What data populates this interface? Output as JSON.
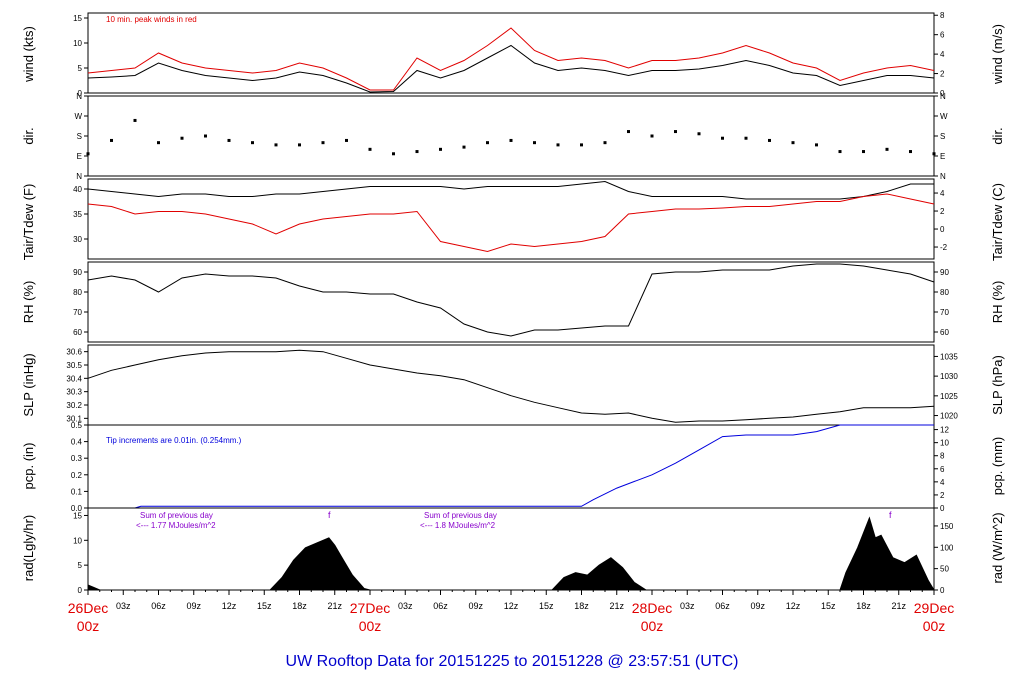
{
  "footer": "UW Rooftop Data for 20151225  to  20151228 @ 23:57:51  (UTC)",
  "colors": {
    "main": "#000000",
    "red": "#e00000",
    "blue": "#0000dd",
    "purple": "#8800cc"
  },
  "chart_data": [
    {
      "type": "line",
      "id": "wind",
      "left_label": "wind (kts)",
      "right_label": "wind (m/s)",
      "left_ticks": [
        "0",
        "5",
        "10",
        "15"
      ],
      "left_range": [
        0,
        16
      ],
      "right_ticks": [
        "0",
        "2",
        "4",
        "6",
        "8"
      ],
      "right_range": [
        0,
        8.23
      ],
      "annotation": "10 min. peak winds in red",
      "x_hours": [
        0,
        2,
        4,
        6,
        8,
        10,
        12,
        14,
        16,
        18,
        20,
        22,
        24,
        26,
        28,
        30,
        32,
        34,
        36,
        38,
        40,
        42,
        44,
        46,
        48,
        50,
        52,
        54,
        56,
        58,
        60,
        62,
        64,
        66,
        68,
        70,
        72
      ],
      "series": [
        {
          "values": [
            3,
            3.2,
            3.5,
            6,
            4.5,
            3.5,
            3,
            2.5,
            3,
            4.2,
            3.5,
            2,
            0.2,
            0.3,
            4.5,
            3,
            4.5,
            7,
            9.5,
            6,
            4.5,
            5,
            4.5,
            3.5,
            4.5,
            4.5,
            4.8,
            5.5,
            6.5,
            5.5,
            4,
            3.5,
            1.5,
            2.5,
            3.5,
            3.5,
            3
          ]
        },
        {
          "values": [
            4,
            4.5,
            5,
            8,
            6,
            5,
            4.5,
            4,
            4.5,
            6,
            5,
            3,
            0.6,
            0.6,
            7,
            4.5,
            6.5,
            9.5,
            13,
            8.5,
            6.5,
            7,
            6.5,
            5,
            6.5,
            6.5,
            7,
            8,
            9.5,
            8,
            6,
            5,
            2.5,
            4,
            5,
            5.5,
            4.5
          ]
        }
      ]
    },
    {
      "type": "scatter",
      "id": "dir",
      "left_label": "dir.",
      "right_label": "dir.",
      "left_ticks": [
        "N",
        "E",
        "S",
        "W",
        "N"
      ],
      "left_range": [
        0,
        360
      ],
      "right_ticks": [
        "N",
        "E",
        "S",
        "W",
        "N"
      ],
      "right_range": [
        0,
        360
      ],
      "x_hours": [
        0,
        2,
        4,
        6,
        8,
        10,
        12,
        14,
        16,
        18,
        20,
        22,
        24,
        26,
        28,
        30,
        32,
        34,
        36,
        38,
        40,
        42,
        44,
        46,
        48,
        50,
        52,
        54,
        56,
        58,
        60,
        62,
        64,
        66,
        68,
        70,
        72
      ],
      "series": [
        {
          "values": [
            100,
            160,
            250,
            150,
            170,
            180,
            160,
            150,
            140,
            140,
            150,
            160,
            120,
            100,
            110,
            120,
            130,
            150,
            160,
            150,
            140,
            140,
            150,
            200,
            180,
            200,
            190,
            170,
            170,
            160,
            150,
            140,
            110,
            110,
            120,
            110,
            100
          ]
        }
      ]
    },
    {
      "type": "line",
      "id": "temp",
      "left_label": "Tair/Tdew (F)",
      "right_label": "Tair/Tdew (C)",
      "left_ticks": [
        "30",
        "35",
        "40"
      ],
      "left_range": [
        26,
        42
      ],
      "right_ticks": [
        "-2",
        "0",
        "2",
        "4"
      ],
      "right_range": [
        -3.33,
        5.56
      ],
      "x_hours": [
        0,
        2,
        4,
        6,
        8,
        10,
        12,
        14,
        16,
        18,
        20,
        22,
        24,
        26,
        28,
        30,
        32,
        34,
        36,
        38,
        40,
        42,
        44,
        46,
        48,
        50,
        52,
        54,
        56,
        58,
        60,
        62,
        64,
        66,
        68,
        70,
        72
      ],
      "series": [
        {
          "name": "Tair",
          "values": [
            40,
            39.5,
            39,
            38.5,
            39,
            39,
            38.5,
            38.5,
            39,
            39,
            39.5,
            40,
            40.5,
            40.5,
            40.5,
            40.5,
            40,
            40.5,
            40.5,
            40.5,
            40.5,
            41,
            41.5,
            39.5,
            38.5,
            38.5,
            38.5,
            38.5,
            38,
            38,
            38,
            38,
            38,
            38.5,
            39.5,
            41,
            41
          ]
        },
        {
          "name": "Tdew",
          "values": [
            37,
            36.5,
            35,
            35.5,
            35.5,
            35,
            34,
            33,
            31,
            33,
            34,
            34.5,
            35,
            35,
            35.5,
            29.5,
            28.5,
            27.5,
            29,
            28.5,
            29,
            29.5,
            30.5,
            35,
            35.5,
            36,
            36,
            36.2,
            36.5,
            36.5,
            37,
            37.5,
            37.5,
            38.5,
            39,
            38,
            37
          ]
        }
      ]
    },
    {
      "type": "line",
      "id": "rh",
      "left_label": "RH (%)",
      "right_label": "RH (%)",
      "left_ticks": [
        "60",
        "70",
        "80",
        "90"
      ],
      "left_range": [
        55,
        95
      ],
      "right_ticks": [
        "60",
        "70",
        "80",
        "90"
      ],
      "right_range": [
        55,
        95
      ],
      "x_hours": [
        0,
        2,
        4,
        6,
        8,
        10,
        12,
        14,
        16,
        18,
        20,
        22,
        24,
        26,
        28,
        30,
        32,
        34,
        36,
        38,
        40,
        42,
        44,
        46,
        48,
        50,
        52,
        54,
        56,
        58,
        60,
        62,
        64,
        66,
        68,
        70,
        72
      ],
      "series": [
        {
          "values": [
            86,
            88,
            86,
            80,
            87,
            89,
            88,
            88,
            87,
            83,
            80,
            80,
            79,
            79,
            75,
            72,
            64,
            60,
            58,
            61,
            61,
            62,
            63,
            63,
            89,
            90,
            90,
            91,
            91,
            91,
            93,
            94,
            94,
            93,
            91,
            89,
            85
          ]
        }
      ]
    },
    {
      "type": "line",
      "id": "slp",
      "left_label": "SLP (inHg)",
      "right_label": "SLP (hPa)",
      "left_ticks": [
        "30.1",
        "30.2",
        "30.3",
        "30.4",
        "30.5",
        "30.6"
      ],
      "left_range": [
        30.05,
        30.65
      ],
      "right_ticks": [
        "1020",
        "1025",
        "1030",
        "1035"
      ],
      "right_range": [
        1017.6,
        1037.9
      ],
      "x_hours": [
        0,
        2,
        4,
        6,
        8,
        10,
        12,
        14,
        16,
        18,
        20,
        22,
        24,
        26,
        28,
        30,
        32,
        34,
        36,
        38,
        40,
        42,
        44,
        46,
        48,
        50,
        52,
        54,
        56,
        58,
        60,
        62,
        64,
        66,
        68,
        70,
        72
      ],
      "series": [
        {
          "values": [
            30.4,
            30.46,
            30.5,
            30.54,
            30.57,
            30.59,
            30.6,
            30.6,
            30.6,
            30.61,
            30.6,
            30.55,
            30.5,
            30.47,
            30.44,
            30.42,
            30.39,
            30.33,
            30.27,
            30.22,
            30.18,
            30.14,
            30.13,
            30.14,
            30.1,
            30.07,
            30.08,
            30.08,
            30.09,
            30.1,
            30.11,
            30.13,
            30.15,
            30.18,
            30.18,
            30.18,
            30.19
          ]
        }
      ]
    },
    {
      "type": "line",
      "id": "pcp",
      "left_label": "pcp. (in)",
      "right_label": "pcp. (mm)",
      "left_ticks": [
        "0.0",
        "0.1",
        "0.2",
        "0.3",
        "0.4",
        "0.5"
      ],
      "left_range": [
        0,
        0.5
      ],
      "right_ticks": [
        "0",
        "2",
        "4",
        "6",
        "8",
        "10",
        "12"
      ],
      "right_range": [
        0,
        12.7
      ],
      "annotation": "Tip increments are 0.01in. (0.254mm.)",
      "x_hours": [
        0,
        4,
        4.5,
        10,
        20,
        30,
        40,
        42,
        43,
        45,
        48,
        50,
        52,
        54,
        56,
        60,
        62,
        64,
        68,
        72
      ],
      "series": [
        {
          "values": [
            0,
            0,
            0.01,
            0.01,
            0.01,
            0.01,
            0.01,
            0.01,
            0.05,
            0.12,
            0.2,
            0.27,
            0.35,
            0.43,
            0.44,
            0.44,
            0.46,
            0.5,
            0.5,
            0.5
          ]
        }
      ]
    },
    {
      "type": "area",
      "id": "rad",
      "left_label": "rad(Lgly/hr)",
      "right_label": "rad (W/m^2)",
      "left_ticks": [
        "0",
        "5",
        "10",
        "15"
      ],
      "left_range": [
        0,
        16.5
      ],
      "right_ticks": [
        "0",
        "50",
        "100",
        "150"
      ],
      "right_range": [
        0,
        192
      ],
      "notes": [
        {
          "line1": "Sum of previous day",
          "line2": "<--- 1.77 MJoules/m^2"
        },
        {
          "line1": "Sum of previous day",
          "line2": "<--- 1.8 MJoules/m^2"
        }
      ],
      "markers": [
        "f",
        "f"
      ],
      "x_hours": [
        0,
        0.5,
        1,
        15.5,
        16.5,
        17.5,
        18.5,
        19.5,
        20.5,
        21,
        21.5,
        22.5,
        23.5,
        24,
        39.5,
        40.5,
        41.5,
        42.5,
        43.5,
        44.5,
        45.5,
        46.5,
        47.5,
        64,
        64.5,
        65.5,
        66.5,
        67,
        67.5,
        68.5,
        69.5,
        70.5,
        71.5,
        72
      ],
      "series": [
        {
          "values": [
            1,
            0.5,
            0,
            0,
            2.5,
            6,
            8.5,
            9.5,
            10.5,
            9,
            7,
            3,
            0.3,
            0,
            0,
            2.5,
            3.5,
            3,
            5,
            6.5,
            4.5,
            1.5,
            0,
            0,
            3.5,
            8.5,
            14.5,
            10.5,
            11,
            6.5,
            5.5,
            7,
            2,
            0
          ]
        }
      ]
    }
  ],
  "x_axis": {
    "tick_labels": [
      "03z",
      "06z",
      "09z",
      "12z",
      "15z",
      "18z",
      "21z",
      "03z",
      "06z",
      "09z",
      "12z",
      "15z",
      "18z",
      "21z",
      "03z",
      "06z",
      "09z",
      "12z",
      "15z",
      "18z",
      "21z"
    ],
    "tick_hours": [
      3,
      6,
      9,
      12,
      15,
      18,
      21,
      27,
      30,
      33,
      36,
      39,
      42,
      45,
      51,
      54,
      57,
      60,
      63,
      66,
      69
    ],
    "day_hours": [
      0,
      24,
      48,
      72
    ],
    "day_labels": [
      {
        "date": "26Dec",
        "time": "00z"
      },
      {
        "date": "27Dec",
        "time": "00z"
      },
      {
        "date": "28Dec",
        "time": "00z"
      },
      {
        "date": "29Dec",
        "time": "00z"
      }
    ]
  }
}
